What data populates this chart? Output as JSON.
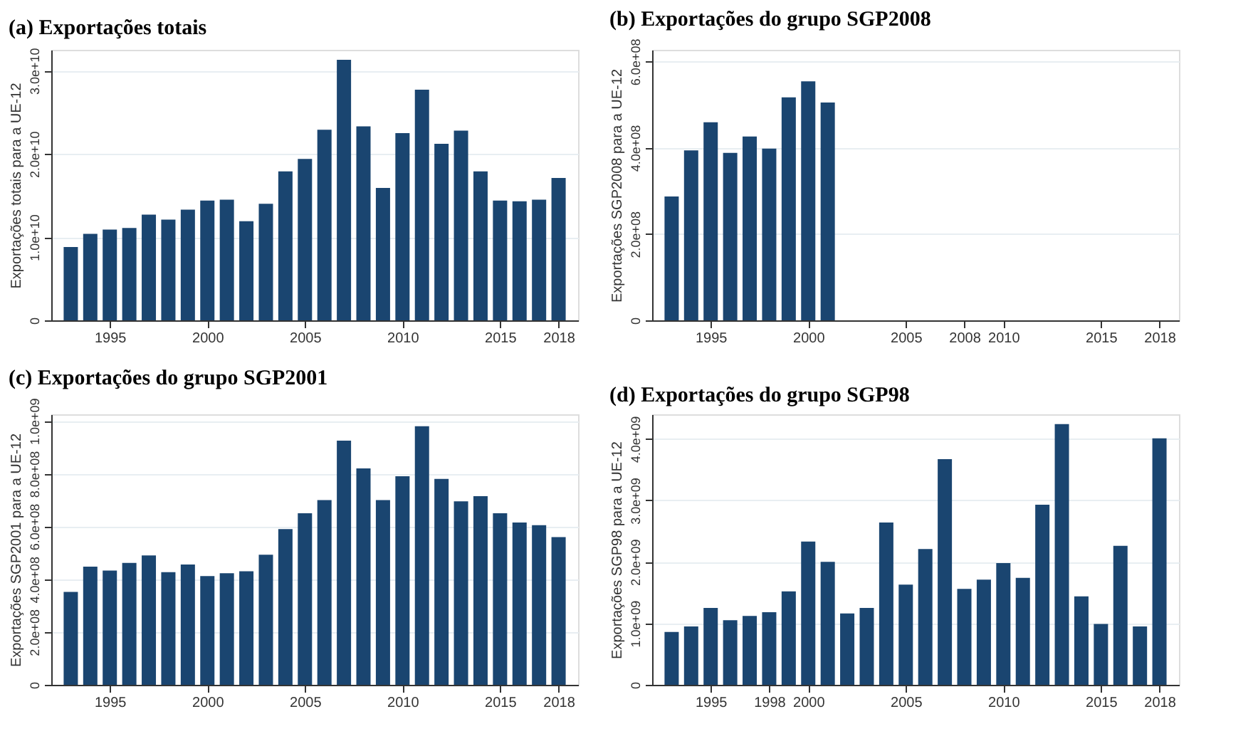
{
  "chart_data": [
    {
      "type": "bar",
      "title": "(a) Exportações totais",
      "ylabel": "Exportações totais para a UE-12",
      "x": [
        1993,
        1994,
        1995,
        1996,
        1997,
        1998,
        1999,
        2000,
        2001,
        2002,
        2003,
        2004,
        2005,
        2006,
        2007,
        2008,
        2009,
        2010,
        2011,
        2012,
        2013,
        2014,
        2015,
        2016,
        2017,
        2018
      ],
      "series": [
        {
          "color": "#1a4570",
          "values": [
            8800000000.0,
            10400000000.0,
            10900000000.0,
            11100000000.0,
            12700000000.0,
            12100000000.0,
            13300000000.0,
            14400000000.0,
            14500000000.0,
            11900000000.0,
            14000000000.0,
            17900000000.0,
            19400000000.0,
            22900000000.0,
            31300000000.0,
            23300000000.0,
            15900000000.0,
            22500000000.0,
            27700000000.0,
            21200000000.0,
            22800000000.0,
            17900000000.0,
            14400000000.0,
            14300000000.0,
            14500000000.0,
            17100000000.0
          ]
        }
      ],
      "xlim": [
        1992,
        2019
      ],
      "xticks": [
        1995,
        2000,
        2005,
        2010,
        2015,
        2018
      ],
      "ylim": [
        0,
        32500000000.0
      ],
      "yticks": [
        0,
        {
          "value": 10000000000.0,
          "label": "1.0e+10"
        },
        {
          "value": 20000000000.0,
          "label": "2.0e+10"
        },
        {
          "value": 30000000000.0,
          "label": "3.0e+10"
        }
      ],
      "grid": "y"
    },
    {
      "type": "bar",
      "title": "(b) Exportações do grupo SGP2008",
      "ylabel": "Exportações SGP2008 para a UE-12",
      "x": [
        1993,
        1994,
        1995,
        1996,
        1997,
        1998,
        1999,
        2000,
        2001,
        2002,
        2003,
        2004,
        2005,
        2006,
        2007,
        2008,
        2009,
        2010,
        2011,
        2012,
        2013,
        2014,
        2015,
        2016,
        2017,
        2018
      ],
      "series": [
        {
          "color": "#1a4570",
          "values": [
            287000000.0,
            394000000.0,
            459000000.0,
            388000000.0,
            426000000.0,
            398000000.0,
            517000000.0,
            554000000.0,
            505000000.0,
            0,
            0,
            0,
            0,
            0,
            0,
            0,
            0,
            0,
            0,
            0,
            0,
            0,
            0,
            0,
            0,
            0
          ]
        }
      ],
      "xlim": [
        1992,
        2019
      ],
      "xticks": [
        1995,
        2000,
        2005,
        2008,
        2010,
        2015,
        2018
      ],
      "ylim": [
        0,
        627000000.0
      ],
      "yticks": [
        0,
        {
          "value": 200000000.0,
          "label": "2.0e+08"
        },
        {
          "value": 400000000.0,
          "label": "4.0e+08"
        },
        {
          "value": 600000000.0,
          "label": "6.0e+08"
        }
      ],
      "grid": "y"
    },
    {
      "type": "bar",
      "title": "(c) Exportações do grupo SGP2001",
      "ylabel": "Exportações SGP2001 para a UE-12",
      "x": [
        1993,
        1994,
        1995,
        1996,
        1997,
        1998,
        1999,
        2000,
        2001,
        2002,
        2003,
        2004,
        2005,
        2006,
        2007,
        2008,
        2009,
        2010,
        2011,
        2012,
        2013,
        2014,
        2015,
        2016,
        2017,
        2018
      ],
      "series": [
        {
          "color": "#1a4570",
          "values": [
            352000000.0,
            448000000.0,
            433000000.0,
            462000000.0,
            490000000.0,
            427000000.0,
            456000000.0,
            412000000.0,
            423000000.0,
            430000000.0,
            493000000.0,
            590000000.0,
            650000000.0,
            700000000.0,
            925000000.0,
            820000000.0,
            700000000.0,
            790000000.0,
            980000000.0,
            780000000.0,
            695000000.0,
            715000000.0,
            650000000.0,
            615000000.0,
            605000000.0,
            560000000.0
          ]
        }
      ],
      "xlim": [
        1992,
        2019
      ],
      "xticks": [
        1995,
        2000,
        2005,
        2010,
        2015,
        2018
      ],
      "ylim": [
        0,
        1025000000.0
      ],
      "yticks": [
        0,
        {
          "value": 200000000.0,
          "label": "2.0e+08"
        },
        {
          "value": 400000000.0,
          "label": "4.0e+08"
        },
        {
          "value": 600000000.0,
          "label": "6.0e+08"
        },
        {
          "value": 800000000.0,
          "label": "8.0e+08"
        },
        {
          "value": 1000000000.0,
          "label": "1.0e+09"
        }
      ],
      "grid": "y"
    },
    {
      "type": "bar",
      "title": "(d) Exportações do grupo SGP98",
      "ylabel": "Exportações SGP98 para a UE-12",
      "x": [
        1993,
        1994,
        1995,
        1996,
        1997,
        1998,
        1999,
        2000,
        2001,
        2002,
        2003,
        2004,
        2005,
        2006,
        2007,
        2008,
        2009,
        2010,
        2011,
        2012,
        2013,
        2014,
        2015,
        2016,
        2017,
        2018
      ],
      "series": [
        {
          "color": "#1a4570",
          "values": [
            860000000.0,
            950000000.0,
            1250000000.0,
            1050000000.0,
            1120000000.0,
            1180000000.0,
            1520000000.0,
            2330000000.0,
            2000000000.0,
            1160000000.0,
            1250000000.0,
            2640000000.0,
            1630000000.0,
            2210000000.0,
            3670000000.0,
            1560000000.0,
            1710000000.0,
            1980000000.0,
            1740000000.0,
            2930000000.0,
            4240000000.0,
            1440000000.0,
            990000000.0,
            2260000000.0,
            950000000.0,
            4010000000.0
          ]
        }
      ],
      "xlim": [
        1992,
        2019
      ],
      "xticks": [
        1995,
        1998,
        2000,
        2005,
        2010,
        2015,
        2018
      ],
      "ylim": [
        0,
        4400000000.0
      ],
      "yticks": [
        0,
        {
          "value": 1000000000.0,
          "label": "1.0e+09"
        },
        {
          "value": 2000000000.0,
          "label": "2.0e+09"
        },
        {
          "value": 3000000000.0,
          "label": "3.0e+09"
        },
        {
          "value": 4000000000.0,
          "label": "4.0e+09"
        }
      ],
      "grid": "y"
    }
  ]
}
